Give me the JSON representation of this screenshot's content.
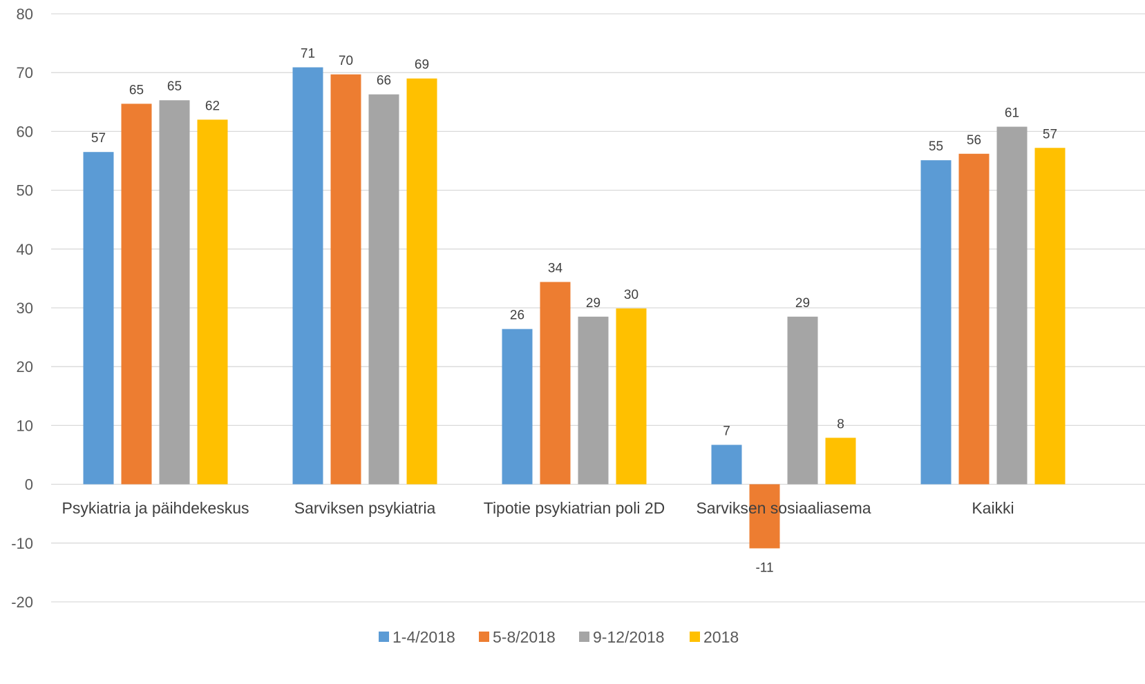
{
  "chart_data": {
    "type": "bar",
    "title": "",
    "xlabel": "",
    "ylabel": "",
    "ylim": [
      -20,
      80
    ],
    "yticks": [
      -20,
      -10,
      0,
      10,
      20,
      30,
      40,
      50,
      60,
      70,
      80
    ],
    "grid": true,
    "legend_position": "bottom",
    "categories": [
      "Psykiatria ja päihdekeskus",
      "Sarviksen psykiatria",
      "Tipotie psykiatrian poli 2D",
      "Sarviksen sosiaaliasema",
      "Kaikki"
    ],
    "series": [
      {
        "name": "1-4/2018",
        "color": "#5B9BD5",
        "values": [
          56.5,
          70.9,
          26.4,
          6.7,
          55.1
        ],
        "labels": [
          "57",
          "71",
          "26",
          "7",
          "55"
        ]
      },
      {
        "name": "5-8/2018",
        "color": "#ED7D31",
        "values": [
          64.7,
          69.7,
          34.4,
          -10.9,
          56.2
        ],
        "labels": [
          "65",
          "70",
          "34",
          "-11",
          "56"
        ]
      },
      {
        "name": "9-12/2018",
        "color": "#A5A5A5",
        "values": [
          65.3,
          66.3,
          28.5,
          28.5,
          60.8
        ],
        "labels": [
          "65",
          "66",
          "29",
          "29",
          "61"
        ]
      },
      {
        "name": "2018",
        "color": "#FFC000",
        "values": [
          62.0,
          69.0,
          29.9,
          7.9,
          57.2
        ],
        "labels": [
          "62",
          "69",
          "30",
          "8",
          "57"
        ]
      }
    ]
  }
}
